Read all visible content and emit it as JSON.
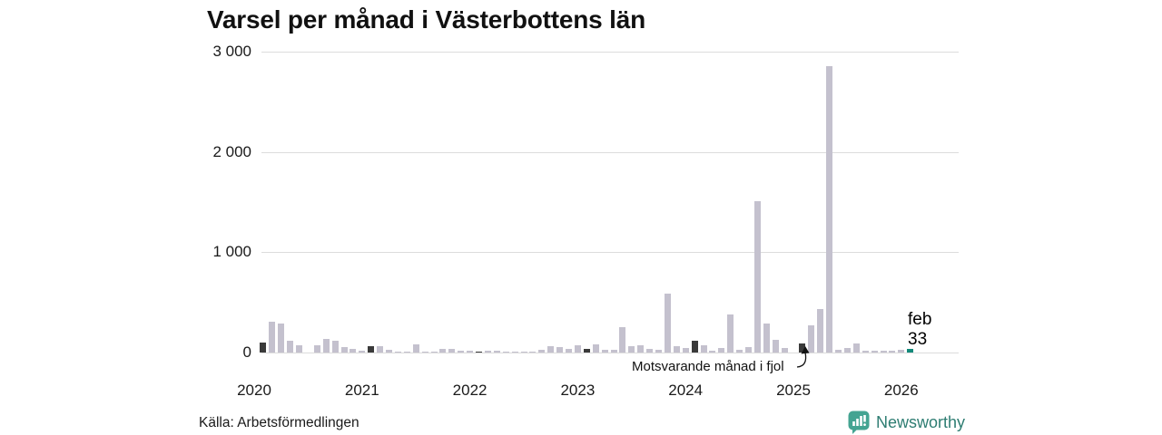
{
  "title": "Varsel per månad i Västerbottens län",
  "source": "Källa: Arbetsförmedlingen",
  "brand": {
    "name": "Newsworthy"
  },
  "annotation": {
    "text": "Motsvarande månad i fjol",
    "target": "februari 2025"
  },
  "current_label": {
    "line1": "feb",
    "line2": "33"
  },
  "colors": {
    "bar_normal": "#c4c1ce",
    "bar_highlight": "#3a3a3a",
    "bar_current": "#12897a",
    "grid": "#dcdcdc",
    "brand_teal": "#2e7d72",
    "brand_icon_teal": "#44a492"
  },
  "chart_data": {
    "type": "bar",
    "title": "Varsel per månad i Västerbottens län",
    "xlabel": "",
    "ylabel": "",
    "ylim": [
      0,
      3000
    ],
    "grid": "horizontal",
    "yticks": [
      {
        "value": 0,
        "label": "0"
      },
      {
        "value": 1000,
        "label": "1 000"
      },
      {
        "value": 2000,
        "label": "2 000"
      },
      {
        "value": 3000,
        "label": "3 000"
      }
    ],
    "highlight_month_index": 1,
    "highlight_meaning": "Motsvarande månad i fjol",
    "current_point": {
      "year": "2026",
      "month": "feb",
      "value": 33
    },
    "series": [
      {
        "year": "2020",
        "values": [
          0,
          100,
          310,
          290,
          115,
          75,
          0,
          70,
          140,
          115,
          55,
          35
        ]
      },
      {
        "year": "2021",
        "values": [
          20,
          60,
          65,
          25,
          10,
          10,
          85,
          10,
          5,
          35,
          35,
          20
        ]
      },
      {
        "year": "2022",
        "values": [
          15,
          10,
          20,
          15,
          8,
          5,
          5,
          12,
          30,
          60,
          55,
          40
        ]
      },
      {
        "year": "2023",
        "values": [
          75,
          40,
          85,
          30,
          25,
          250,
          65,
          75,
          35,
          30,
          590,
          60
        ]
      },
      {
        "year": "2024",
        "values": [
          45,
          115,
          75,
          20,
          45,
          380,
          30,
          55,
          1510,
          290,
          125,
          45
        ]
      },
      {
        "year": "2025",
        "values": [
          0,
          90,
          270,
          435,
          2860,
          25,
          45,
          90,
          20,
          15,
          20,
          20
        ]
      },
      {
        "year": "2026",
        "values": [
          30,
          33
        ]
      }
    ]
  }
}
